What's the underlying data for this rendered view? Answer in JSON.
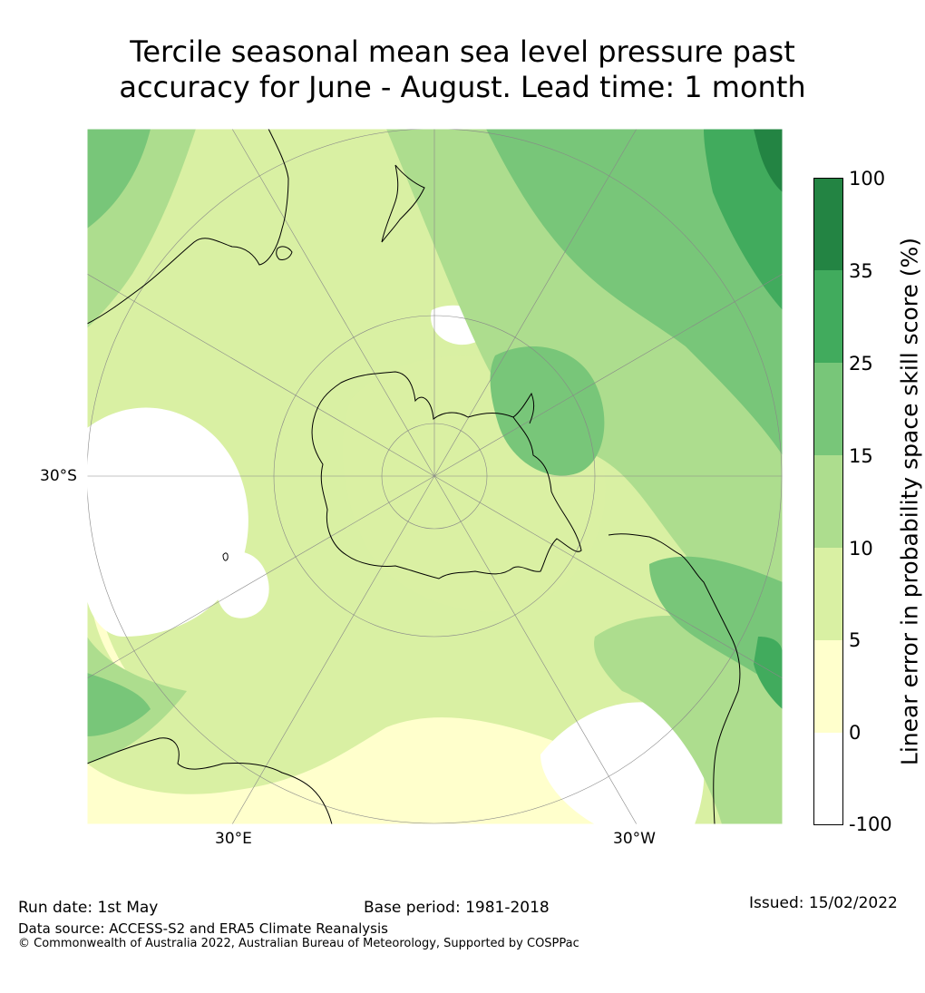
{
  "title": {
    "line1": "Tercile seasonal mean sea level pressure past",
    "line2": "accuracy for June - August. Lead time: 1 month"
  },
  "map_labels": {
    "left": "30°S",
    "bottom_left": "30°E",
    "bottom_right": "30°W"
  },
  "colorbar": {
    "label": "Linear error in probability space skill score (%)",
    "ticks": [
      "100",
      "35",
      "25",
      "15",
      "10",
      "5",
      "0",
      "-100"
    ],
    "colors": [
      "#ffffff",
      "#ffffcc",
      "#d9f0a3",
      "#addd8e",
      "#78c679",
      "#41ab5d",
      "#238443"
    ]
  },
  "colors": {
    "ocean_base": "#ffffcc",
    "land_outline": "#000000",
    "grid": "#888888"
  },
  "footer": {
    "run_date": "Run date: 1st May",
    "base_period": "Base period: 1981-2018",
    "issued": "Issued: 15/02/2022",
    "data_source": "Data source: ACCESS-S2 and ERA5 Climate Reanalysis",
    "copyright": "© Commonwealth of Australia 2022, Australian Bureau of Meteorology, Supported by COSPPac"
  }
}
